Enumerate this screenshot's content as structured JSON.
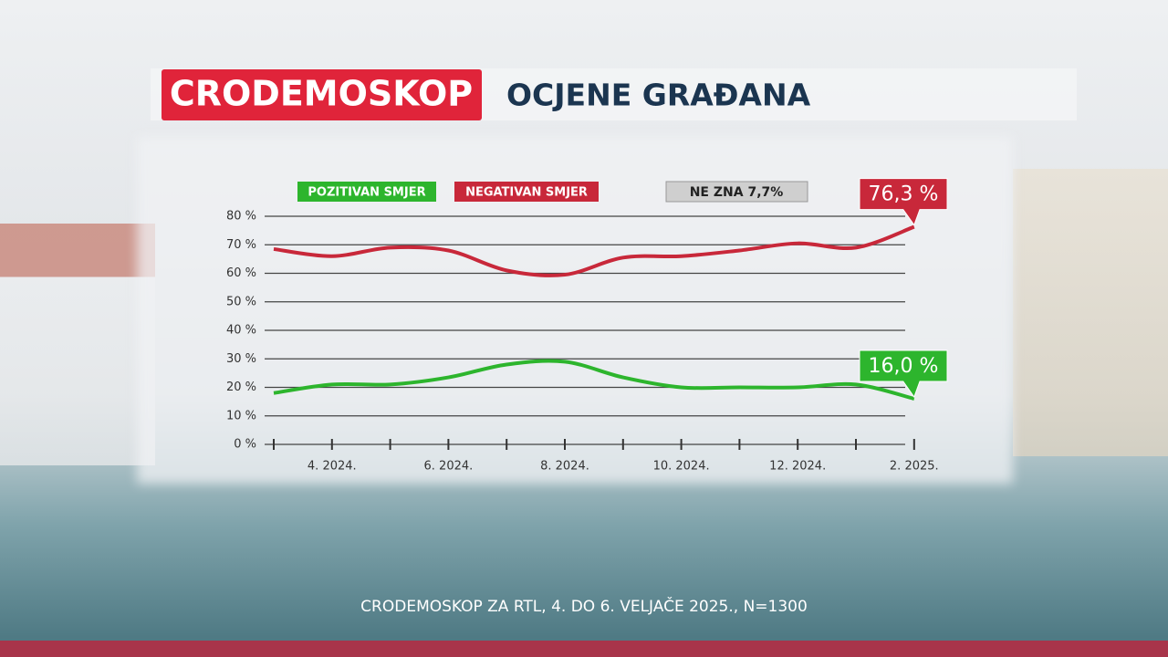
{
  "header": {
    "brand": "CRODEMOSKOP",
    "title": "OCJENE GRAĐANA"
  },
  "chart_data": {
    "type": "line",
    "categories": [
      null,
      "4. 2024.",
      null,
      "6. 2024.",
      null,
      "8. 2024.",
      null,
      "10. 2024.",
      null,
      "12. 2024.",
      null,
      "2. 2025."
    ],
    "series": [
      {
        "name": "POZITIVAN SMJER",
        "color": "#2db52d",
        "values": [
          18,
          21,
          21,
          23.5,
          28,
          29,
          23.5,
          20,
          20,
          20,
          21,
          16.0
        ],
        "value_labels": [
          null,
          null,
          null,
          null,
          null,
          null,
          null,
          null,
          null,
          null,
          null,
          "16,0 %"
        ]
      },
      {
        "name": "NEGATIVAN SMJER",
        "color": "#c8283a",
        "values": [
          68.5,
          66,
          69,
          68,
          61,
          59.5,
          65.5,
          66,
          68,
          70.5,
          69,
          76.3
        ],
        "value_labels": [
          null,
          null,
          null,
          null,
          null,
          null,
          null,
          null,
          null,
          null,
          null,
          "76,3 %"
        ]
      }
    ],
    "annotation": "NE ZNA 7,7%",
    "ylim": [
      0,
      80
    ],
    "yticks": [
      {
        "value": 0,
        "label": "0 %"
      },
      {
        "value": 10,
        "label": "10 %"
      },
      {
        "value": 20,
        "label": "20 %"
      },
      {
        "value": 30,
        "label": "30 %"
      },
      {
        "value": 40,
        "label": "40 %"
      },
      {
        "value": 50,
        "label": "50 %"
      },
      {
        "value": 60,
        "label": "60 %"
      },
      {
        "value": 70,
        "label": "70 %"
      },
      {
        "value": 80,
        "label": "80 %"
      }
    ],
    "grid": true,
    "source": "CRODEMOSKOP ZA RTL, 4. DO 6. VELJAČE 2025., N=1300"
  }
}
